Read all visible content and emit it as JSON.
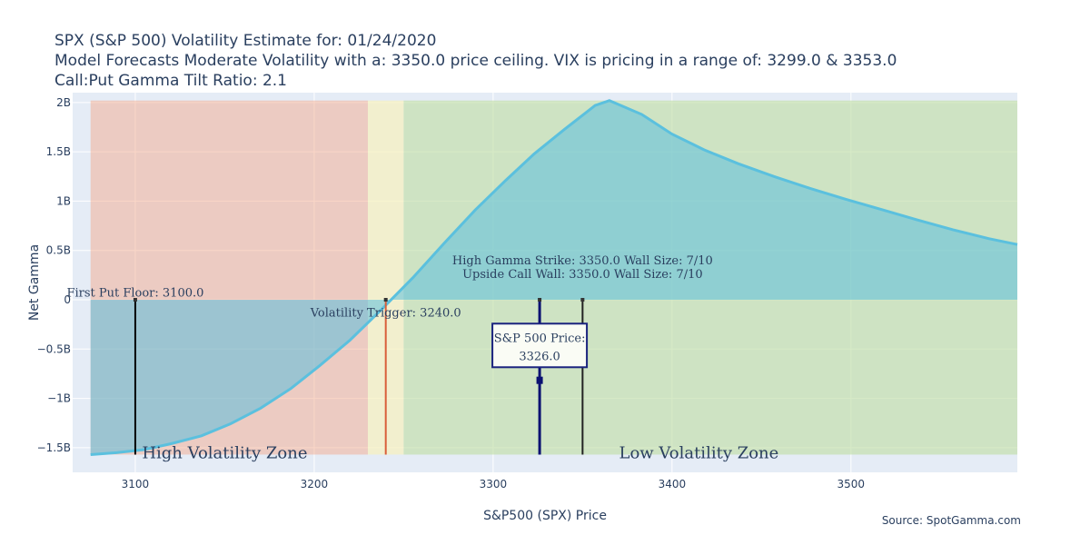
{
  "title": {
    "line1": "SPX (S&P 500) Volatility Estimate for: 01/24/2020",
    "line2": "Model Forecasts Moderate Volatility with a: 3350.0 price ceiling. VIX is pricing in a range of: 3299.0 & 3353.0",
    "line3": "Call:Put Gamma Tilt Ratio: 2.1"
  },
  "source": "Source: SpotGamma.com",
  "chart_data": {
    "type": "area",
    "xlabel": "S&P500 (SPX) Price",
    "ylabel": "Net Gamma",
    "xlim": [
      3065,
      3593
    ],
    "ylim": [
      -1.75,
      2.1
    ],
    "x_ticks": [
      {
        "value": 3100,
        "label": "3100"
      },
      {
        "value": 3200,
        "label": "3200"
      },
      {
        "value": 3300,
        "label": "3300"
      },
      {
        "value": 3400,
        "label": "3400"
      },
      {
        "value": 3500,
        "label": "3500"
      }
    ],
    "y_ticks": [
      {
        "value": 2,
        "label": "2B"
      },
      {
        "value": 1.5,
        "label": "1.5B"
      },
      {
        "value": 1,
        "label": "1B"
      },
      {
        "value": 0.5,
        "label": "0.5B"
      },
      {
        "value": 0,
        "label": "0"
      },
      {
        "value": -0.5,
        "label": "−0.5B"
      },
      {
        "value": -1,
        "label": "−1B"
      },
      {
        "value": -1.5,
        "label": "−1.5B"
      }
    ],
    "series": [
      {
        "name": "Net Gamma",
        "color": "#5bc0de",
        "x": [
          3075,
          3090,
          3105,
          3120,
          3137,
          3153,
          3170,
          3187,
          3203,
          3220,
          3237,
          3255,
          3273,
          3290,
          3307,
          3323,
          3340,
          3357,
          3365,
          3383,
          3400,
          3418,
          3437,
          3457,
          3477,
          3497,
          3518,
          3537,
          3557,
          3577,
          3593
        ],
        "y": [
          -1.57,
          -1.55,
          -1.52,
          -1.46,
          -1.38,
          -1.26,
          -1.1,
          -0.9,
          -0.67,
          -0.41,
          -0.11,
          0.22,
          0.58,
          0.91,
          1.21,
          1.48,
          1.73,
          1.97,
          2.02,
          1.88,
          1.68,
          1.52,
          1.38,
          1.25,
          1.13,
          1.02,
          0.91,
          0.81,
          0.71,
          0.62,
          0.56
        ]
      }
    ],
    "zones": [
      {
        "name": "High Volatility Zone",
        "x0": 3075,
        "x1": 3230,
        "color": "#f4a582",
        "opacity": 0.45
      },
      {
        "name": "transition",
        "x0": 3230,
        "x1": 3250,
        "color": "#f5f0c0",
        "opacity": 0.75
      },
      {
        "name": "Low Volatility Zone",
        "x0": 3250,
        "x1": 3593,
        "color": "#c2dea8",
        "opacity": 0.65
      }
    ],
    "zone_y_range": [
      -1.57,
      2.02
    ],
    "zone_labels": [
      {
        "text": "High Volatility Zone",
        "x": 3150,
        "y": -1.55
      },
      {
        "text": "Low Volatility Zone",
        "x": 3415,
        "y": -1.55
      }
    ],
    "vlines": [
      {
        "name": "put-floor",
        "x": 3100,
        "y0": -1.57,
        "y1": 0,
        "color": "#000000",
        "width": 2
      },
      {
        "name": "volatility-trigger",
        "x": 3240,
        "y0": -1.57,
        "y1": 0,
        "color": "#d95f3b",
        "width": 2
      },
      {
        "name": "spx-price",
        "x": 3326,
        "y0": -1.57,
        "y1": 0,
        "color": "#0a1172",
        "width": 3
      },
      {
        "name": "gamma-strike",
        "x": 3350,
        "y0": -1.57,
        "y1": 0,
        "color": "#222222",
        "width": 2
      }
    ],
    "annotations": [
      {
        "text": "First Put Floor: 3100.0",
        "x": 3100,
        "y": 0.03
      },
      {
        "text": "Volatility Trigger: 3240.0",
        "x": 3240,
        "y": -0.17
      },
      {
        "text": "High Gamma Strike: 3350.0 Wall Size: 7/10",
        "x": 3350,
        "y": 0.36
      },
      {
        "text": "Upside Call Wall: 3350.0 Wall Size: 7/10",
        "x": 3350,
        "y": 0.22
      }
    ],
    "price_box": {
      "line1": "S&P 500 Price:",
      "line2": "3326.0",
      "x": 3326,
      "y": -0.5
    }
  }
}
